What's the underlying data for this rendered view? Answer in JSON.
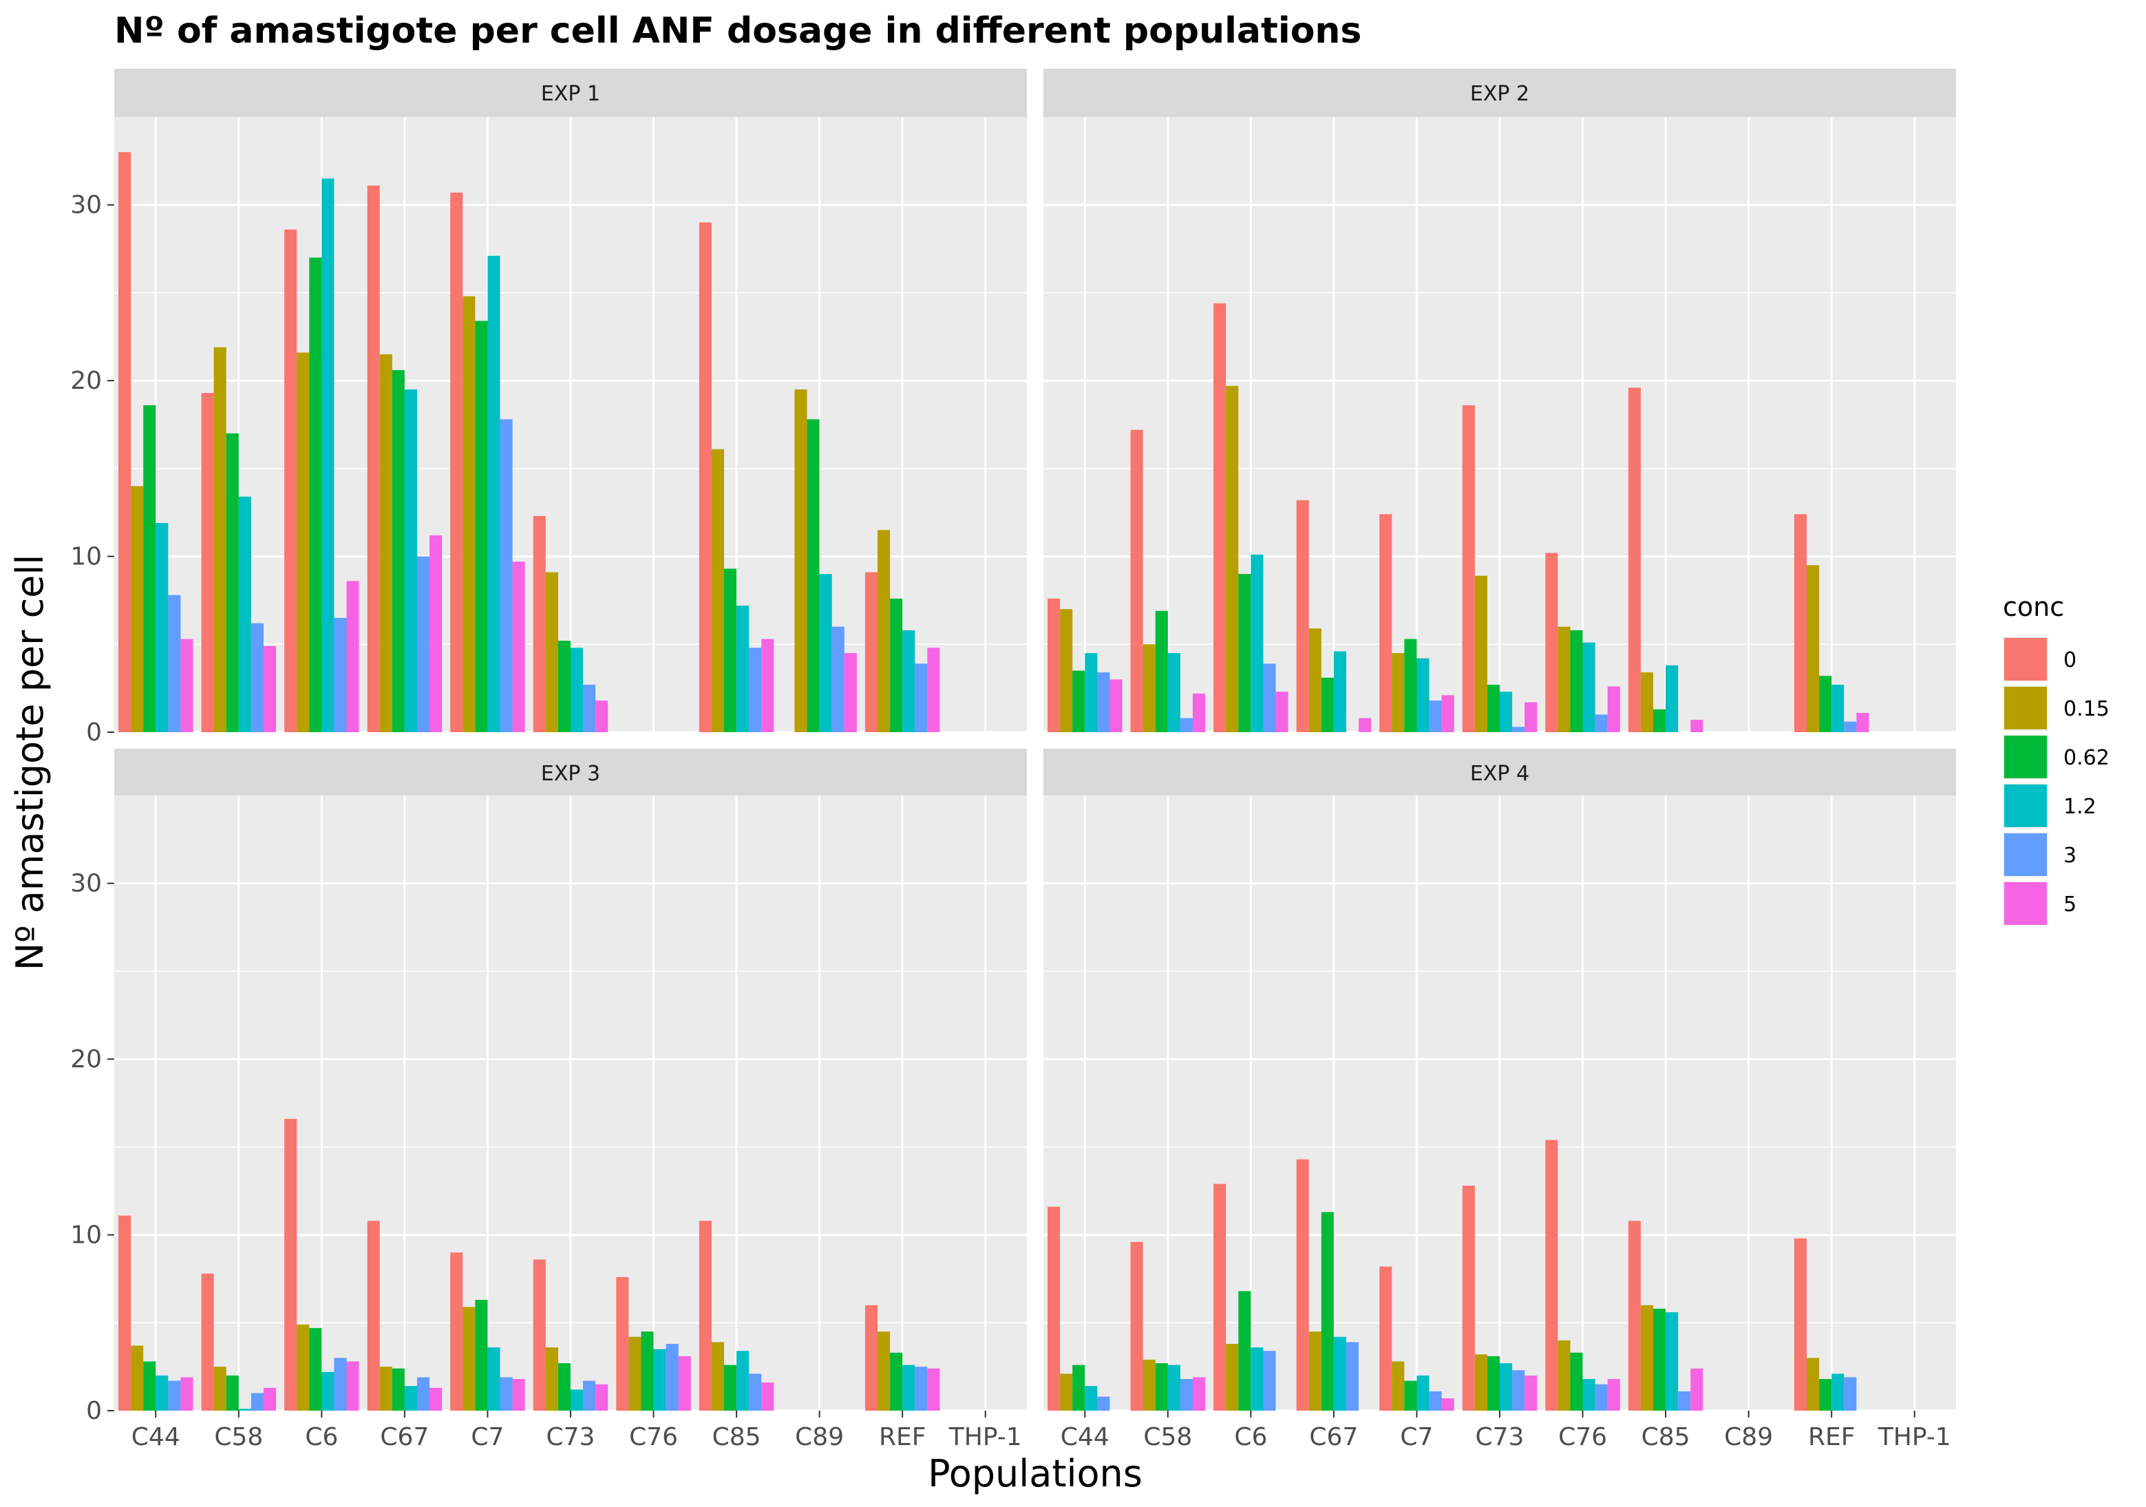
{
  "chart_data": {
    "type": "bar",
    "title": "Nº of amastigote per cell ANF dosage in different populations",
    "xlabel": "Populations",
    "ylabel": "Nº  amastigote per cell",
    "ylim": [
      0,
      35
    ],
    "yticks": [
      0,
      10,
      20,
      30
    ],
    "categories": [
      "C44",
      "C58",
      "C6",
      "C67",
      "C7",
      "C73",
      "C76",
      "C85",
      "C89",
      "REF",
      "THP-1"
    ],
    "legend": {
      "title": "conc",
      "position": "right"
    },
    "series_colors": [
      "#F8766D",
      "#B79F00",
      "#00BA38",
      "#00BFC4",
      "#619CFF",
      "#F564E3"
    ],
    "facets": [
      {
        "label": "EXP 1",
        "series": [
          {
            "name": "0",
            "values": [
              33,
              19.3,
              28.6,
              31.1,
              30.7,
              12.3,
              null,
              29.0,
              null,
              9.1,
              null
            ]
          },
          {
            "name": "0.15",
            "values": [
              14.0,
              21.9,
              21.6,
              21.5,
              24.8,
              9.1,
              null,
              16.1,
              19.5,
              11.5,
              null
            ]
          },
          {
            "name": "0.62",
            "values": [
              18.6,
              17.0,
              27.0,
              20.6,
              23.4,
              5.2,
              null,
              9.3,
              17.8,
              7.6,
              null
            ]
          },
          {
            "name": "1.2",
            "values": [
              11.9,
              13.4,
              31.5,
              19.5,
              27.1,
              4.8,
              null,
              7.2,
              9.0,
              5.8,
              null
            ]
          },
          {
            "name": "3",
            "values": [
              7.8,
              6.2,
              6.5,
              10.0,
              17.8,
              2.7,
              null,
              4.8,
              6.0,
              3.9,
              null
            ]
          },
          {
            "name": "5",
            "values": [
              5.3,
              4.9,
              8.6,
              11.2,
              9.7,
              1.8,
              null,
              5.3,
              4.5,
              4.8,
              null
            ]
          }
        ],
        "note_offset": [
          0,
          0,
          0,
          0,
          0,
          0,
          0,
          0,
          1,
          0,
          0
        ]
      },
      {
        "label": "EXP 2",
        "series": [
          {
            "name": "0",
            "values": [
              7.6,
              17.2,
              24.4,
              13.2,
              12.4,
              18.6,
              10.2,
              19.6,
              null,
              12.4,
              null
            ]
          },
          {
            "name": "0.15",
            "values": [
              7.0,
              5.0,
              19.7,
              5.9,
              4.5,
              8.9,
              6.0,
              3.4,
              null,
              9.5,
              null
            ]
          },
          {
            "name": "0.62",
            "values": [
              3.5,
              6.9,
              9.0,
              3.1,
              5.3,
              2.7,
              5.8,
              1.3,
              null,
              3.2,
              null
            ]
          },
          {
            "name": "1.2",
            "values": [
              4.5,
              4.5,
              10.1,
              4.6,
              4.2,
              2.3,
              5.1,
              3.8,
              null,
              2.7,
              null
            ]
          },
          {
            "name": "3",
            "values": [
              3.4,
              0.8,
              3.9,
              null,
              1.8,
              0.3,
              1.0,
              null,
              null,
              0.6,
              null
            ]
          },
          {
            "name": "5",
            "values": [
              3.0,
              2.2,
              2.3,
              0.8,
              2.1,
              1.7,
              2.6,
              0.7,
              null,
              1.1,
              null
            ]
          }
        ]
      },
      {
        "label": "EXP 3",
        "series": [
          {
            "name": "0",
            "values": [
              11.1,
              7.8,
              16.6,
              10.8,
              9.0,
              8.6,
              7.6,
              10.8,
              null,
              6.0,
              null
            ]
          },
          {
            "name": "0.15",
            "values": [
              3.7,
              2.5,
              4.9,
              2.5,
              5.9,
              3.6,
              4.2,
              3.9,
              null,
              4.5,
              null
            ]
          },
          {
            "name": "0.62",
            "values": [
              2.8,
              2.0,
              4.7,
              2.4,
              6.3,
              2.7,
              4.5,
              2.6,
              null,
              3.3,
              null
            ]
          },
          {
            "name": "1.2",
            "values": [
              2.0,
              0.1,
              2.2,
              1.4,
              3.6,
              1.2,
              3.5,
              3.4,
              null,
              2.6,
              null
            ]
          },
          {
            "name": "3",
            "values": [
              1.7,
              1.0,
              3.0,
              1.9,
              1.9,
              1.7,
              3.8,
              2.1,
              null,
              2.5,
              null
            ]
          },
          {
            "name": "5",
            "values": [
              1.9,
              1.3,
              2.8,
              1.3,
              1.8,
              1.5,
              3.1,
              1.6,
              null,
              2.4,
              null
            ]
          }
        ]
      },
      {
        "label": "EXP 4",
        "series": [
          {
            "name": "0",
            "values": [
              11.6,
              9.6,
              12.9,
              14.3,
              8.2,
              12.8,
              15.4,
              10.8,
              null,
              9.8,
              null
            ]
          },
          {
            "name": "0.15",
            "values": [
              2.1,
              2.9,
              3.8,
              4.5,
              2.8,
              3.2,
              4.0,
              6.0,
              null,
              3.0,
              null
            ]
          },
          {
            "name": "0.62",
            "values": [
              2.6,
              2.7,
              6.8,
              11.3,
              1.7,
              3.1,
              3.3,
              5.8,
              null,
              1.8,
              null
            ]
          },
          {
            "name": "1.2",
            "values": [
              1.4,
              2.6,
              3.6,
              4.2,
              2.0,
              2.7,
              1.8,
              5.6,
              null,
              2.1,
              null
            ]
          },
          {
            "name": "3",
            "values": [
              0.8,
              1.8,
              3.4,
              3.9,
              1.1,
              2.3,
              1.5,
              1.1,
              null,
              1.9,
              null
            ]
          },
          {
            "name": "5",
            "values": [
              null,
              1.9,
              null,
              null,
              0.7,
              2.0,
              1.8,
              2.4,
              null,
              null,
              null
            ]
          }
        ]
      }
    ]
  }
}
